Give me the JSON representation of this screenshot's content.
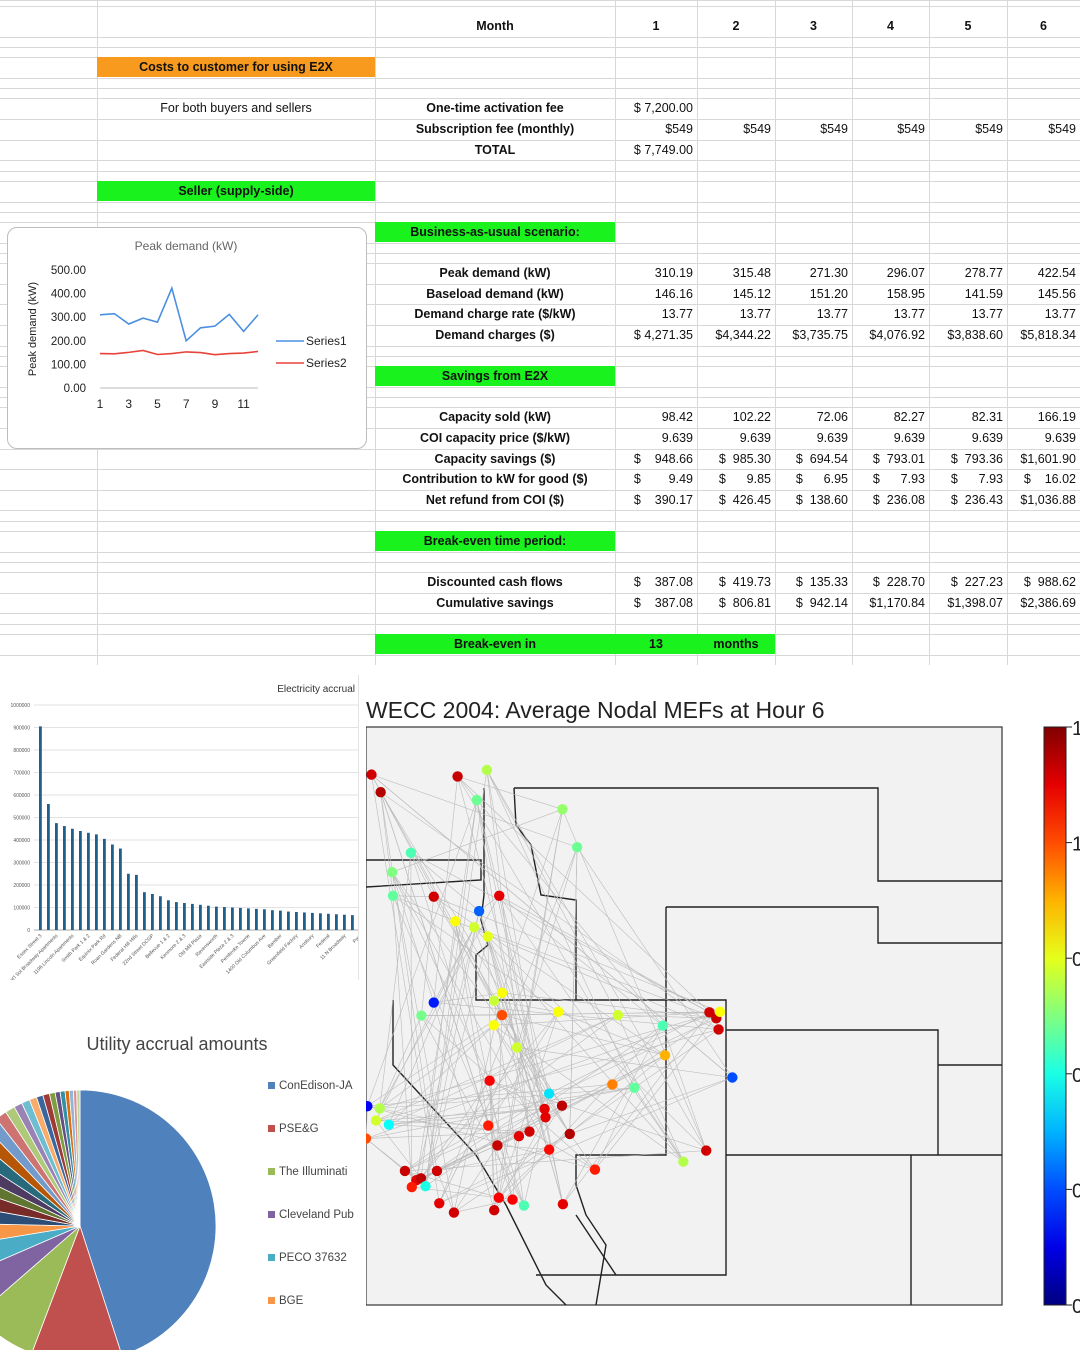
{
  "sheet": {
    "header": {
      "label": "Month",
      "months": [
        "1",
        "2",
        "3",
        "4",
        "5",
        "6"
      ]
    },
    "costs_title": "Costs to customer for using E2X",
    "buyers_sellers": "For both buyers and sellers",
    "fees": [
      {
        "label": "One-time activation fee",
        "values": [
          "$ 7,200.00",
          "",
          "",
          "",
          "",
          ""
        ]
      },
      {
        "label": "Subscription fee (monthly)",
        "values": [
          "$549",
          "$549",
          "$549",
          "$549",
          "$549",
          "$549"
        ]
      },
      {
        "label": "TOTAL",
        "values": [
          "$ 7,749.00",
          "",
          "",
          "",
          "",
          ""
        ]
      }
    ],
    "seller_title": "Seller (supply-side)",
    "bau_title": "Business-as-usual scenario:",
    "bau_rows": [
      {
        "label": "Peak demand (kW)",
        "values": [
          "310.19",
          "315.48",
          "271.30",
          "296.07",
          "278.77",
          "422.54"
        ]
      },
      {
        "label": "Baseload demand (kW)",
        "values": [
          "146.16",
          "145.12",
          "151.20",
          "158.95",
          "141.59",
          "145.56"
        ]
      },
      {
        "label": "Demand charge rate ($/kW)",
        "values": [
          "13.77",
          "13.77",
          "13.77",
          "13.77",
          "13.77",
          "13.77"
        ]
      },
      {
        "label": "Demand charges ($)",
        "values": [
          "$ 4,271.35",
          "$4,344.22",
          "$3,735.75",
          "$4,076.92",
          "$3,838.60",
          "$5,818.34"
        ]
      }
    ],
    "savings_title": "Savings from E2X",
    "savings_rows": [
      {
        "label": "Capacity sold (kW)",
        "values": [
          "98.42",
          "102.22",
          "72.06",
          "82.27",
          "82.31",
          "166.19"
        ]
      },
      {
        "label": "COI capacity price ($/kW)",
        "values": [
          "9.639",
          "9.639",
          "9.639",
          "9.639",
          "9.639",
          "9.639"
        ]
      },
      {
        "label": "Capacity savings ($)",
        "values": [
          "$    948.66",
          "$  985.30",
          "$  694.54",
          "$  793.01",
          "$  793.36",
          "$1,601.90"
        ]
      },
      {
        "label": "Contribution to kW for good ($)",
        "values": [
          "$        9.49",
          "$      9.85",
          "$      6.95",
          "$      7.93",
          "$      7.93",
          "$    16.02"
        ]
      },
      {
        "label": "Net refund from COI ($)",
        "values": [
          "$    390.17",
          "$  426.45",
          "$  138.60",
          "$  236.08",
          "$  236.43",
          "$1,036.88"
        ]
      }
    ],
    "breakeven_title": "Break-even time period:",
    "cash_rows": [
      {
        "label": "Discounted cash flows",
        "values": [
          "$    387.08",
          "$  419.73",
          "$  135.33",
          "$  228.70",
          "$  227.23",
          "$  988.62"
        ]
      },
      {
        "label": "Cumulative savings",
        "values": [
          "$    387.08",
          "$  806.81",
          "$  942.14",
          "$1,170.84",
          "$1,398.07",
          "$2,386.69"
        ]
      }
    ],
    "breakeven_in": {
      "label": "Break-even in",
      "value": "13",
      "unit": "months"
    }
  },
  "chart_data": [
    {
      "type": "line",
      "title": "Peak demand (kW)",
      "ylabel": "Peak demand (kW)",
      "xlabel": "",
      "ylim": [
        0,
        500
      ],
      "yticks": [
        "500.00",
        "400.00",
        "300.00",
        "200.00",
        "100.00",
        "0.00"
      ],
      "xticks": [
        "1",
        "3",
        "5",
        "7",
        "9",
        "11"
      ],
      "x": [
        1,
        2,
        3,
        4,
        5,
        6,
        7,
        8,
        9,
        10,
        11,
        12
      ],
      "series": [
        {
          "name": "Series1",
          "color": "#4a8fe2",
          "values": [
            310,
            315,
            271,
            296,
            279,
            423,
            200,
            255,
            262,
            312,
            240,
            310
          ]
        },
        {
          "name": "Series2",
          "color": "#e8433a",
          "values": [
            146,
            145,
            151,
            159,
            142,
            146,
            153,
            150,
            141,
            146,
            148,
            155
          ]
        }
      ],
      "legend": "right"
    },
    {
      "type": "bar",
      "title": "Electricity accrual",
      "ylim": [
        0,
        1000000
      ],
      "yticks": [
        "1000000",
        "900000",
        "800000",
        "700000",
        "600000",
        "500000",
        "400000",
        "300000",
        "200000",
        "100000",
        "0"
      ],
      "values": [
        905000,
        560000,
        475000,
        462000,
        450000,
        440000,
        432000,
        425000,
        405000,
        380000,
        362000,
        250000,
        245000,
        168000,
        160000,
        150000,
        132000,
        124000,
        120000,
        116000,
        112000,
        108000,
        104000,
        102000,
        100000,
        98000,
        96000,
        94000,
        92000,
        88000,
        86000,
        82000,
        80000,
        78000,
        76000,
        74000,
        72000,
        70000,
        68000,
        66000
      ],
      "categories": [
        "Essex Street 3",
        "Int.Sol Broadway",
        "Union St Rnds",
        "Smith Park 1",
        "Equinix Park",
        "Roan Garden",
        "Federal Hill Hills",
        "22nd Street 5",
        "Bellevue ODGP",
        "Elmwood 1 & 2",
        "Old Mill",
        "Kinnwood",
        "Ravensworth",
        "Sunset Park",
        "Eastside Plaza 3",
        "Pembroke Towne",
        "Saint Columbus Ave",
        "Bamber",
        "Greenfield",
        "Aqueduct Industrial",
        "Ansbury",
        "Federal",
        "11 N Broadway",
        "Park",
        "Rowan",
        "Fox Chase",
        "Glenview",
        "Mercer",
        "Harbor",
        "Liberty",
        "Park Ridge",
        "Ocean",
        "Willow",
        "Chelsea",
        "Norton",
        "Stanton",
        "Linden",
        "Hilltop",
        "Westend",
        "Fairview"
      ],
      "category_labels": [
        "Essex Street 3",
        "Int'l Sol Broadway Apartments",
        "1196 Lincoln Apartments",
        "Smith Park 1 & 2",
        "Equinix Park Rd",
        "Roan Gardens NB",
        "Federal Hill Hills",
        "22nd Street DCGP",
        "Bellevue 1 & 2",
        "Kenmore 2 & 3",
        "Old Mill Plaza",
        "Ravensworth",
        "Eastside Plaza 2 & 3",
        "Pembroke Towne",
        "1400 Old Columbus Ave",
        "Bamber",
        "Greenfield Factory",
        "Ansbury",
        "Federal",
        "11 N Broadway",
        "Park"
      ],
      "color": "#1f5f8b"
    },
    {
      "type": "pie",
      "title": "Utility accrual amounts",
      "legend": [
        "ConEdison-JA",
        "PSE&G",
        "The Illuminati",
        "Cleveland Pub",
        "PECO 37632",
        "BGE"
      ],
      "legend_colors": [
        "#4f81bd",
        "#c0504d",
        "#9bbb59",
        "#8064a2",
        "#4bacc6",
        "#f79646"
      ],
      "values": [
        46,
        11,
        8,
        5,
        4,
        3,
        2.5,
        2.5,
        2,
        2,
        2,
        1.8,
        1.6,
        1.4,
        1.2,
        1,
        1,
        0.9,
        0.8,
        0.8,
        0.7,
        0.6,
        0.6,
        0.5,
        0.5,
        0.4,
        0.4
      ],
      "colors": [
        "#4f81bd",
        "#c0504d",
        "#9bbb59",
        "#8064a2",
        "#4bacc6",
        "#f79646",
        "#2c4d75",
        "#772c2a",
        "#5f7530",
        "#4d3b62",
        "#276a7c",
        "#b65708",
        "#729acb",
        "#cd7371",
        "#afc97a",
        "#9983b5",
        "#6fbdd1",
        "#f9ab6b",
        "#3a669c",
        "#9e3a37",
        "#7e9c40",
        "#664f83",
        "#3490a6",
        "#d76f10",
        "#95b3d7",
        "#d99594",
        "#c3d69b"
      ]
    },
    {
      "type": "scatter",
      "title": "WECC 2004: Average Nodal MEFs at Hour 6",
      "colorbar_ticks": [
        "1",
        "1",
        "0",
        "0",
        "0",
        "0"
      ],
      "points": [
        {
          "x": 0.012,
          "y": 0.103,
          "v": 0.92
        },
        {
          "x": 0.032,
          "y": 0.141,
          "v": 0.95
        },
        {
          "x": 0.2,
          "y": 0.107,
          "v": 0.93
        },
        {
          "x": 0.264,
          "y": 0.093,
          "v": 0.55
        },
        {
          "x": 0.242,
          "y": 0.158,
          "v": 0.48
        },
        {
          "x": 0.429,
          "y": 0.178,
          "v": 0.52
        },
        {
          "x": 0.098,
          "y": 0.272,
          "v": 0.45
        },
        {
          "x": 0.057,
          "y": 0.314,
          "v": 0.5
        },
        {
          "x": 0.059,
          "y": 0.365,
          "v": 0.47
        },
        {
          "x": 0.148,
          "y": 0.367,
          "v": 0.92
        },
        {
          "x": 0.291,
          "y": 0.365,
          "v": 0.9
        },
        {
          "x": 0.461,
          "y": 0.26,
          "v": 0.48
        },
        {
          "x": 0.195,
          "y": 0.42,
          "v": 0.62
        },
        {
          "x": 0.236,
          "y": 0.433,
          "v": 0.58
        },
        {
          "x": 0.266,
          "y": 0.453,
          "v": 0.6
        },
        {
          "x": 0.247,
          "y": 0.398,
          "v": 0.22
        },
        {
          "x": 0.148,
          "y": 0.596,
          "v": 0.15
        },
        {
          "x": 0.121,
          "y": 0.624,
          "v": 0.49
        },
        {
          "x": 0.297,
          "y": 0.575,
          "v": 0.62
        },
        {
          "x": 0.28,
          "y": 0.592,
          "v": 0.57
        },
        {
          "x": 0.297,
          "y": 0.623,
          "v": 0.8
        },
        {
          "x": 0.279,
          "y": 0.645,
          "v": 0.62
        },
        {
          "x": 0.33,
          "y": 0.693,
          "v": 0.58
        },
        {
          "x": 0.42,
          "y": 0.616,
          "v": 0.62
        },
        {
          "x": 0.55,
          "y": 0.623,
          "v": 0.58
        },
        {
          "x": 0.648,
          "y": 0.646,
          "v": 0.45
        },
        {
          "x": 0.75,
          "y": 0.617,
          "v": 0.92
        },
        {
          "x": 0.765,
          "y": 0.63,
          "v": 0.93
        },
        {
          "x": 0.773,
          "y": 0.616,
          "v": 0.62
        },
        {
          "x": 0.77,
          "y": 0.654,
          "v": 0.92
        },
        {
          "x": 0.653,
          "y": 0.71,
          "v": 0.7
        },
        {
          "x": 0.538,
          "y": 0.773,
          "v": 0.75
        },
        {
          "x": 0.586,
          "y": 0.78,
          "v": 0.47
        },
        {
          "x": 0.8,
          "y": 0.758,
          "v": 0.2
        },
        {
          "x": 0.428,
          "y": 0.819,
          "v": 0.94
        },
        {
          "x": 0.39,
          "y": 0.826,
          "v": 0.9
        },
        {
          "x": 0.392,
          "y": 0.844,
          "v": 0.9
        },
        {
          "x": 0.03,
          "y": 0.825,
          "v": 0.55
        },
        {
          "x": 0.022,
          "y": 0.851,
          "v": 0.58
        },
        {
          "x": 0.003,
          "y": 0.82,
          "v": 0.12
        },
        {
          "x": 0.267,
          "y": 0.862,
          "v": 0.85
        },
        {
          "x": 0.287,
          "y": 0.905,
          "v": 0.93
        },
        {
          "x": 0.334,
          "y": 0.885,
          "v": 0.9
        },
        {
          "x": 0.357,
          "y": 0.875,
          "v": 0.92
        },
        {
          "x": 0.445,
          "y": 0.88,
          "v": 0.95
        },
        {
          "x": 0.4,
          "y": 0.914,
          "v": 0.87
        },
        {
          "x": 0.743,
          "y": 0.916,
          "v": 0.92
        },
        {
          "x": 0.693,
          "y": 0.94,
          "v": 0.55
        },
        {
          "x": 0.5,
          "y": 0.957,
          "v": 0.85
        },
        {
          "x": 0.085,
          "y": 0.96,
          "v": 0.93
        },
        {
          "x": 0.11,
          "y": 0.98,
          "v": 0.9
        },
        {
          "x": 0.12,
          "y": 0.976,
          "v": 0.94
        },
        {
          "x": 0.155,
          "y": 0.96,
          "v": 0.92
        },
        {
          "x": 0.1,
          "y": 0.995,
          "v": 0.85
        },
        {
          "x": 0.13,
          "y": 0.993,
          "v": 0.4
        },
        {
          "x": 0.16,
          "y": 1.03,
          "v": 0.9
        },
        {
          "x": 0.192,
          "y": 1.05,
          "v": 0.92
        },
        {
          "x": 0.28,
          "y": 1.045,
          "v": 0.92
        },
        {
          "x": 0.05,
          "y": 0.86,
          "v": 0.38
        },
        {
          "x": 0.0,
          "y": 0.89,
          "v": 0.8
        },
        {
          "x": 0.27,
          "y": 0.765,
          "v": 0.88
        },
        {
          "x": 0.4,
          "y": 0.793,
          "v": 0.35
        },
        {
          "x": 0.29,
          "y": 1.018,
          "v": 0.88
        },
        {
          "x": 0.32,
          "y": 1.022,
          "v": 0.88
        },
        {
          "x": 0.345,
          "y": 1.035,
          "v": 0.45
        },
        {
          "x": 0.43,
          "y": 1.032,
          "v": 0.9
        }
      ]
    }
  ]
}
